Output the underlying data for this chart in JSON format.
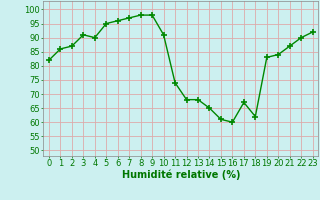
{
  "x": [
    0,
    1,
    2,
    3,
    4,
    5,
    6,
    7,
    8,
    9,
    10,
    11,
    12,
    13,
    14,
    15,
    16,
    17,
    18,
    19,
    20,
    21,
    22,
    23
  ],
  "y": [
    82,
    86,
    87,
    91,
    90,
    95,
    96,
    97,
    98,
    98,
    91,
    74,
    68,
    68,
    65,
    61,
    60,
    67,
    62,
    83,
    84,
    87,
    90,
    92
  ],
  "line_color": "#008800",
  "marker": "+",
  "marker_size": 5,
  "linewidth": 1.0,
  "background_color": "#ccf0f0",
  "grid_color": "#ddaaaa",
  "xlabel": "Humidité relative (%)",
  "xlabel_color": "#007700",
  "xlabel_fontsize": 7,
  "ylabel_ticks": [
    50,
    55,
    60,
    65,
    70,
    75,
    80,
    85,
    90,
    95,
    100
  ],
  "ylim": [
    48,
    103
  ],
  "xlim": [
    -0.5,
    23.5
  ],
  "tick_fontsize": 6,
  "tick_color": "#007700",
  "spine_color": "#888888"
}
